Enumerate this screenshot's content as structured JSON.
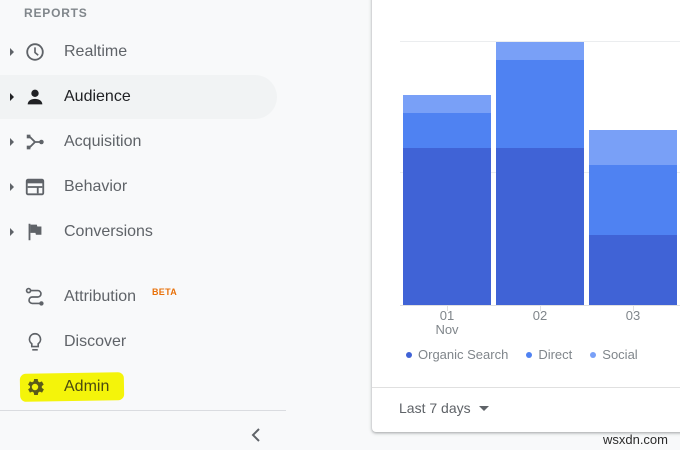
{
  "sidebar": {
    "section_label": "REPORTS",
    "items": [
      {
        "label": "Realtime",
        "icon": "clock-icon",
        "expandable": true,
        "selected": false
      },
      {
        "label": "Audience",
        "icon": "person-icon",
        "expandable": true,
        "selected": true
      },
      {
        "label": "Acquisition",
        "icon": "merge-icon",
        "expandable": true,
        "selected": false
      },
      {
        "label": "Behavior",
        "icon": "web-layout-icon",
        "expandable": true,
        "selected": false
      },
      {
        "label": "Conversions",
        "icon": "flag-icon",
        "expandable": true,
        "selected": false
      },
      {
        "label": "Attribution",
        "icon": "route-icon",
        "badge": "BETA",
        "expandable": false,
        "selected": false
      },
      {
        "label": "Discover",
        "icon": "lightbulb-icon",
        "expandable": false,
        "selected": false
      },
      {
        "label": "Admin",
        "icon": "gear-icon",
        "expandable": false,
        "selected": false,
        "highlighted": true
      }
    ],
    "collapse_icon": "chevron-left-icon"
  },
  "card": {
    "date_range": "Last 7 days",
    "legend": [
      {
        "label": "Organic Search",
        "color": "#4063d6"
      },
      {
        "label": "Direct",
        "color": "#4f82f2"
      },
      {
        "label": "Social",
        "color": "#79a0f7"
      }
    ],
    "x_labels": [
      {
        "line1": "01",
        "line2": "Nov"
      },
      {
        "line1": "02",
        "line2": ""
      },
      {
        "line1": "03",
        "line2": ""
      }
    ]
  },
  "colors": {
    "organic": "#4063d6",
    "direct": "#4f82f2",
    "social": "#79a0f7",
    "admin_highlight": "#f4f40a",
    "beta_badge": "#e8710a"
  },
  "chart_data": {
    "type": "bar",
    "stacked": true,
    "title": "",
    "xlabel": "",
    "ylabel": "",
    "categories": [
      "01 Nov",
      "02",
      "03"
    ],
    "series": [
      {
        "name": "Organic Search",
        "color": "#4063d6",
        "values": [
          59.7,
          59.7,
          26.6
        ]
      },
      {
        "name": "Direct",
        "color": "#4f82f2",
        "values": [
          13.3,
          33.5,
          26.6
        ]
      },
      {
        "name": "Social",
        "color": "#79a0f7",
        "values": [
          6.8,
          6.8,
          13.3
        ]
      }
    ],
    "ylim": [
      0,
      100
    ],
    "y_ticks_labeled": false,
    "grid": true,
    "legend_position": "bottom",
    "note": "Y-axis has no visible tick labels; values are relative to the top gridline (=100)."
  },
  "watermark": "wsxdn.com"
}
